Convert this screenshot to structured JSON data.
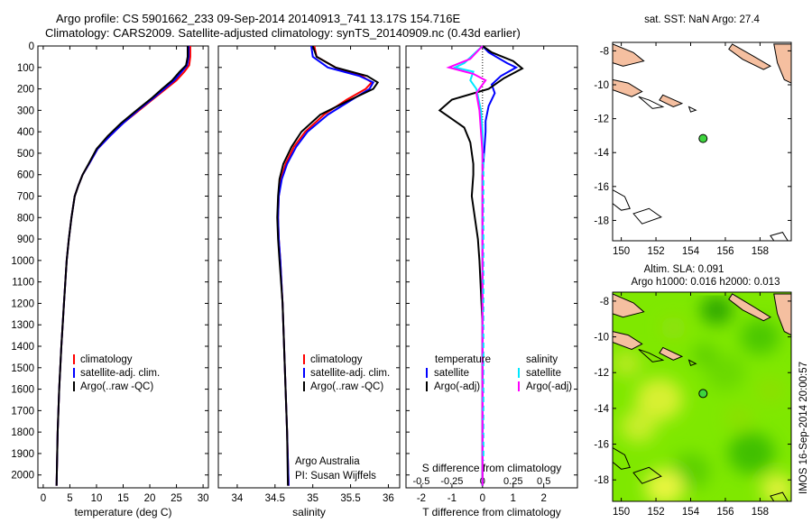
{
  "title_line1": "Argo profile: CS 5901662_233 09-Sep-2014 20140913_741 13.17S 154.716E",
  "title_line2": "Climatology: CARS2009. Satellite-adjusted climatology: synTS_20140909.nc (0.43d earlier)",
  "timestamp": "IMOS 16-Sep-2014 20:00:57",
  "colors": {
    "clim": "#ff0000",
    "sat": "#0000ff",
    "argo": "#000000",
    "sal_sat": "#00e8ff",
    "sal_argo": "#ff00ff",
    "land": "#f5bfa0",
    "ocean_base": "#7fe800"
  },
  "chart_data": [
    {
      "type": "line",
      "name": "temperature",
      "xlabel": "temperature (deg C)",
      "ylabel": "",
      "xlim": [
        -1,
        31
      ],
      "ylim": [
        2060,
        0
      ],
      "xticks": [
        0,
        5,
        10,
        15,
        20,
        25,
        30
      ],
      "yticks": [
        0,
        100,
        200,
        300,
        400,
        500,
        600,
        700,
        800,
        900,
        1000,
        1100,
        1200,
        1300,
        1400,
        1500,
        1600,
        1700,
        1800,
        1900,
        2000
      ],
      "legend": [
        "climatology",
        "satellite-adj. clim.",
        "Argo(..raw -QC)"
      ],
      "series": [
        {
          "name": "climatology",
          "color": "#ff0000",
          "points": [
            [
              27.6,
              0
            ],
            [
              27.6,
              50
            ],
            [
              27.4,
              90
            ],
            [
              26.5,
              120
            ],
            [
              25,
              160
            ],
            [
              23,
              200
            ],
            [
              21,
              240
            ],
            [
              18,
              300
            ],
            [
              15,
              360
            ],
            [
              12.5,
              420
            ],
            [
              10.2,
              480
            ],
            [
              8.6,
              550
            ],
            [
              7.4,
              600
            ],
            [
              6.6,
              650
            ],
            [
              5.9,
              700
            ],
            [
              5.3,
              800
            ],
            [
              4.8,
              900
            ],
            [
              4.4,
              1000
            ],
            [
              3.9,
              1200
            ],
            [
              3.4,
              1400
            ],
            [
              3.0,
              1600
            ],
            [
              2.7,
              1800
            ],
            [
              2.5,
              2050
            ]
          ]
        },
        {
          "name": "satellite-adj. clim.",
          "color": "#0000ff",
          "points": [
            [
              27.3,
              0
            ],
            [
              27.3,
              50
            ],
            [
              27.0,
              90
            ],
            [
              26,
              120
            ],
            [
              24.6,
              160
            ],
            [
              22.7,
              200
            ],
            [
              20.8,
              240
            ],
            [
              17.8,
              300
            ],
            [
              15,
              360
            ],
            [
              12.5,
              420
            ],
            [
              10.2,
              480
            ],
            [
              8.6,
              550
            ],
            [
              7.4,
              600
            ],
            [
              6.6,
              650
            ],
            [
              5.9,
              700
            ],
            [
              5.3,
              800
            ],
            [
              4.8,
              900
            ],
            [
              4.4,
              1000
            ],
            [
              3.9,
              1200
            ],
            [
              3.4,
              1400
            ],
            [
              3.0,
              1600
            ],
            [
              2.7,
              1800
            ],
            [
              2.5,
              2050
            ]
          ]
        },
        {
          "name": "Argo(..raw -QC)",
          "color": "#000000",
          "points": [
            [
              27.1,
              0
            ],
            [
              27.1,
              50
            ],
            [
              26.8,
              90
            ],
            [
              25.6,
              120
            ],
            [
              24.2,
              160
            ],
            [
              22.3,
              200
            ],
            [
              20.5,
              240
            ],
            [
              17.5,
              300
            ],
            [
              14.6,
              360
            ],
            [
              12.1,
              420
            ],
            [
              10.0,
              480
            ],
            [
              8.5,
              550
            ],
            [
              7.4,
              600
            ],
            [
              6.6,
              650
            ],
            [
              5.9,
              700
            ],
            [
              5.3,
              800
            ],
            [
              4.8,
              900
            ],
            [
              4.4,
              1000
            ],
            [
              3.9,
              1200
            ],
            [
              3.4,
              1400
            ],
            [
              3.0,
              1600
            ],
            [
              2.7,
              1800
            ],
            [
              2.5,
              2050
            ]
          ]
        }
      ]
    },
    {
      "type": "line",
      "name": "salinity",
      "xlabel": "salinity",
      "ylabel": "",
      "xlim": [
        33.75,
        36.15
      ],
      "ylim": [
        2060,
        0
      ],
      "xticks": [
        34,
        34.5,
        35,
        35.5,
        36
      ],
      "legend": [
        "climatology",
        "satellite-adj. clim.",
        "Argo(..raw -QC)"
      ],
      "annotation": [
        "Argo Australia",
        "PI: Susan Wijffels"
      ],
      "series": [
        {
          "name": "climatology",
          "color": "#ff0000",
          "points": [
            [
              35.02,
              0
            ],
            [
              35.05,
              50
            ],
            [
              35.3,
              100
            ],
            [
              35.65,
              140
            ],
            [
              35.78,
              170
            ],
            [
              35.7,
              200
            ],
            [
              35.45,
              250
            ],
            [
              35.15,
              320
            ],
            [
              34.9,
              400
            ],
            [
              34.75,
              470
            ],
            [
              34.64,
              550
            ],
            [
              34.58,
              620
            ],
            [
              34.55,
              700
            ],
            [
              34.54,
              800
            ],
            [
              34.55,
              900
            ],
            [
              34.57,
              1000
            ],
            [
              34.6,
              1200
            ],
            [
              34.63,
              1500
            ],
            [
              34.66,
              1800
            ],
            [
              34.68,
              2050
            ]
          ]
        },
        {
          "name": "satellite-adj. clim.",
          "color": "#0000ff",
          "points": [
            [
              34.98,
              0
            ],
            [
              35.0,
              50
            ],
            [
              35.2,
              100
            ],
            [
              35.62,
              140
            ],
            [
              35.8,
              170
            ],
            [
              35.75,
              200
            ],
            [
              35.52,
              250
            ],
            [
              35.2,
              320
            ],
            [
              34.93,
              400
            ],
            [
              34.78,
              470
            ],
            [
              34.66,
              550
            ],
            [
              34.59,
              620
            ],
            [
              34.55,
              700
            ],
            [
              34.54,
              800
            ],
            [
              34.55,
              900
            ],
            [
              34.57,
              1000
            ],
            [
              34.6,
              1200
            ],
            [
              34.63,
              1500
            ],
            [
              34.66,
              1800
            ],
            [
              34.68,
              2050
            ]
          ]
        },
        {
          "name": "Argo(..raw -QC)",
          "color": "#000000",
          "points": [
            [
              35.0,
              0
            ],
            [
              35.05,
              50
            ],
            [
              35.3,
              100
            ],
            [
              35.72,
              140
            ],
            [
              35.86,
              170
            ],
            [
              35.8,
              200
            ],
            [
              35.5,
              250
            ],
            [
              35.1,
              320
            ],
            [
              34.85,
              400
            ],
            [
              34.72,
              470
            ],
            [
              34.61,
              550
            ],
            [
              34.56,
              620
            ],
            [
              34.54,
              700
            ],
            [
              34.53,
              800
            ],
            [
              34.54,
              900
            ],
            [
              34.56,
              1000
            ],
            [
              34.6,
              1200
            ],
            [
              34.63,
              1500
            ],
            [
              34.66,
              1800
            ],
            [
              34.67,
              2050
            ]
          ]
        }
      ]
    },
    {
      "type": "line",
      "name": "differences",
      "xlabel": "T difference from climatology",
      "xlabel_top": "S difference from climatology",
      "xlim": [
        -2.5,
        3.1
      ],
      "ylim": [
        2060,
        0
      ],
      "xticks": [
        -2,
        -1,
        0,
        1,
        2
      ],
      "xticks_top": [
        -0.5,
        -0.25,
        0,
        0.25,
        0.5
      ],
      "legend_left_title": "temperature",
      "legend_right_title": "salinity",
      "legend": [
        "satellite",
        "Argo(-adj)",
        "satellite",
        "Argo(-adj)"
      ],
      "series": [
        {
          "name": "satellite",
          "color": "#0000ff",
          "points": [
            [
              0,
              0
            ],
            [
              0.2,
              30
            ],
            [
              0.8,
              80
            ],
            [
              1.1,
              100
            ],
            [
              0.6,
              140
            ],
            [
              0.3,
              180
            ],
            [
              0.4,
              220
            ],
            [
              0.2,
              280
            ],
            [
              0.1,
              350
            ],
            [
              0.1,
              400
            ],
            [
              0.05,
              500
            ],
            [
              0,
              600
            ],
            [
              0,
              800
            ],
            [
              0,
              1000
            ],
            [
              0,
              2050
            ]
          ]
        },
        {
          "name": "Argo(-adj)",
          "color": "#000000",
          "points": [
            [
              0,
              0
            ],
            [
              0.3,
              30
            ],
            [
              1.0,
              70
            ],
            [
              1.3,
              105
            ],
            [
              0.7,
              150
            ],
            [
              0.2,
              200
            ],
            [
              -1.0,
              250
            ],
            [
              -1.4,
              300
            ],
            [
              -0.6,
              380
            ],
            [
              -0.4,
              450
            ],
            [
              -0.3,
              550
            ],
            [
              -0.3,
              600
            ],
            [
              -0.35,
              700
            ],
            [
              -0.25,
              800
            ],
            [
              -0.15,
              900
            ],
            [
              -0.1,
              1000
            ],
            [
              -0.05,
              1150
            ],
            [
              0,
              1300
            ],
            [
              0,
              2050
            ]
          ]
        },
        {
          "name": "satellite",
          "color": "#00e8ff",
          "points": [
            [
              0,
              0
            ],
            [
              -0.6,
              80
            ],
            [
              -0.9,
              100
            ],
            [
              -0.3,
              120
            ],
            [
              -0.4,
              160
            ],
            [
              -0.2,
              200
            ],
            [
              -0.05,
              300
            ],
            [
              0,
              400
            ],
            [
              0,
              2050
            ]
          ]
        },
        {
          "name": "Argo(-adj)",
          "color": "#ff00ff",
          "points": [
            [
              0,
              0
            ],
            [
              -0.4,
              60
            ],
            [
              -1.1,
              100
            ],
            [
              -0.3,
              130
            ],
            [
              0.1,
              160
            ],
            [
              -0.2,
              220
            ],
            [
              -0.1,
              300
            ],
            [
              -0.05,
              400
            ],
            [
              0,
              500
            ],
            [
              0,
              2050
            ]
          ]
        }
      ]
    },
    {
      "type": "scatter",
      "name": "sst-map",
      "title": "sat. SST: NaN Argo: 27.4",
      "xlim": [
        149.5,
        159.8
      ],
      "ylim": [
        -19.2,
        -7.5
      ],
      "xticks": [
        150,
        152,
        154,
        156,
        158
      ],
      "yticks": [
        -8,
        -10,
        -12,
        -14,
        -16,
        -18
      ],
      "points": [
        {
          "x": 154.716,
          "y": -13.17
        }
      ]
    },
    {
      "type": "heatmap",
      "name": "sla-map",
      "title_line1": "Altim. SLA: 0.091",
      "title_line2": "Argo h1000: 0.016 h2000: 0.013",
      "xlim": [
        149.5,
        159.8
      ],
      "ylim": [
        -19.2,
        -7.5
      ],
      "xticks": [
        150,
        152,
        154,
        156,
        158
      ],
      "yticks": [
        -8,
        -10,
        -12,
        -14,
        -16,
        -18
      ],
      "points": [
        {
          "x": 154.716,
          "y": -13.17
        }
      ]
    }
  ]
}
